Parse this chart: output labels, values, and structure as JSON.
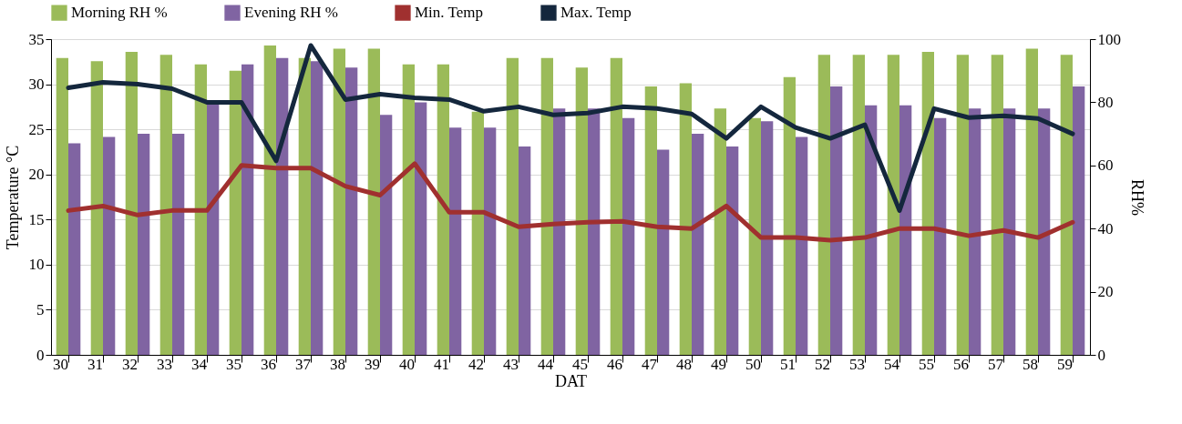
{
  "chart_data": {
    "type": "bar",
    "xlabel": "DAT",
    "ylabel": "Temperature °C",
    "y2label": "RH%",
    "categories": [
      "30",
      "31",
      "32",
      "33",
      "34",
      "35",
      "36",
      "37",
      "38",
      "39",
      "40",
      "41",
      "42",
      "43",
      "44",
      "45",
      "46",
      "47",
      "48",
      "49",
      "50",
      "51",
      "52",
      "53",
      "54",
      "55",
      "56",
      "57",
      "58",
      "59"
    ],
    "series": [
      {
        "name": "Morning RH %",
        "axis": "y2",
        "color": "#9bbb59",
        "values": [
          94,
          93,
          96,
          95,
          92,
          90,
          98,
          94,
          97,
          97,
          92,
          92,
          77,
          94,
          94,
          91,
          94,
          85,
          86,
          78,
          75,
          88,
          95,
          95,
          95,
          96,
          95,
          95,
          97,
          95
        ]
      },
      {
        "name": "Evening RH %",
        "axis": "y2",
        "color": "#8064a2",
        "values": [
          67,
          69,
          70,
          70,
          80,
          92,
          94,
          93,
          91,
          76,
          80,
          72,
          72,
          66,
          78,
          78,
          75,
          65,
          70,
          66,
          74,
          69,
          85,
          79,
          79,
          75,
          78,
          78,
          78,
          85
        ]
      },
      {
        "name": "Min. Temp",
        "type": "line",
        "axis": "y",
        "color": "#a0302f",
        "values": [
          16,
          16.5,
          15.5,
          16,
          16,
          21,
          20.7,
          20.7,
          18.7,
          17.7,
          21.2,
          15.8,
          15.8,
          14.2,
          14.5,
          14.7,
          14.8,
          14.2,
          14,
          16.5,
          13,
          13,
          12.7,
          13,
          14,
          14,
          13.2,
          13.8,
          13,
          14.7
        ]
      },
      {
        "name": "Max. Temp",
        "type": "line",
        "axis": "y",
        "color": "#14273d",
        "values": [
          29.6,
          30.2,
          30,
          29.5,
          28,
          28,
          21.5,
          34.3,
          28.3,
          28.9,
          28.5,
          28.3,
          27,
          27.5,
          26.6,
          26.8,
          27.5,
          27.3,
          26.7,
          24,
          27.5,
          25.2,
          24,
          25.5,
          16,
          27.3,
          26.3,
          26.5,
          26.2,
          24.5
        ]
      }
    ],
    "ylim": [
      0,
      35
    ],
    "yticks": [
      0,
      5,
      10,
      15,
      20,
      25,
      30,
      35
    ],
    "y2lim": [
      0,
      100
    ],
    "y2ticks": [
      0,
      20,
      40,
      60,
      80,
      100
    ],
    "grid": "y",
    "legend": "top",
    "marker": "none",
    "line_style": "solid"
  }
}
